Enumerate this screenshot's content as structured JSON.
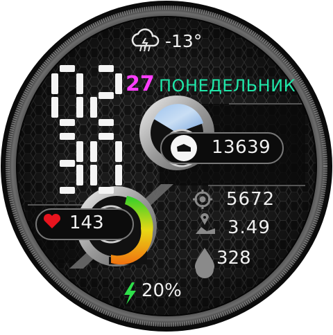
{
  "weather": {
    "temperature": "-13°",
    "icon": "cloud-rain-icon"
  },
  "time": {
    "hour": "02",
    "minute": "30"
  },
  "date": {
    "day": "27",
    "weekday": "ПОНЕДЕЛЬНИК"
  },
  "steps": {
    "value": "13639",
    "icon": "shoe-icon"
  },
  "heart_rate": {
    "value": "143",
    "icon": "heart-icon"
  },
  "calories": {
    "value": "5672",
    "icon": "target-icon"
  },
  "distance": {
    "value": "3.49",
    "icon": "route-icon"
  },
  "water": {
    "value": "328",
    "icon": "drop-icon"
  },
  "battery": {
    "value": "20%",
    "icon": "bolt-icon"
  },
  "colors": {
    "date_day": "#ff3dff",
    "weekday": "#1fe6a8",
    "heart": "#e8141e",
    "battery_bolt": "#2ee04a",
    "hexagon_bg": "#1b1b1b"
  }
}
